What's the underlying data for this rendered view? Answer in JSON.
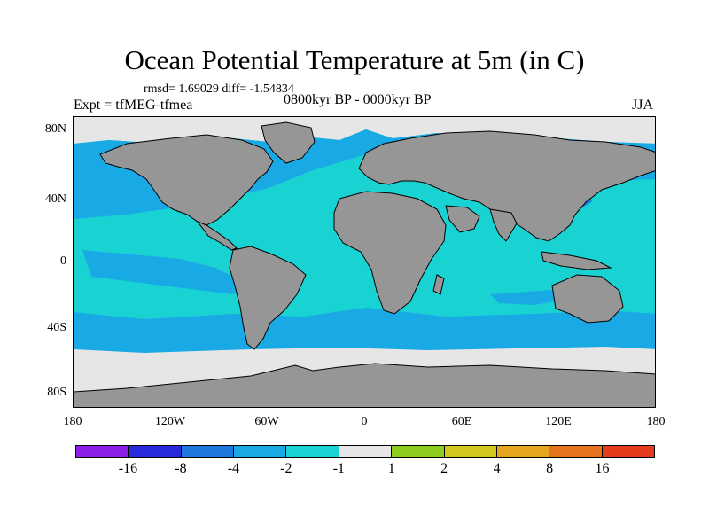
{
  "title": "Ocean Potential Temperature at 5m (in C)",
  "stats": "rmsd= 1.69029 diff= -1.54834",
  "experiment": "Expt = tfMEG-tfmea",
  "period": "0800kyr BP - 0000kyr BP",
  "season": "JJA",
  "y_axis_labels": [
    "80N",
    "40N",
    "0",
    "40S",
    "80S"
  ],
  "x_axis_labels": [
    "180",
    "120W",
    "60W",
    "0",
    "60E",
    "120E",
    "180"
  ],
  "colorbar": {
    "colors": [
      "#8c1ee6",
      "#2a2adc",
      "#1f78dc",
      "#19aae6",
      "#19d2d2",
      "#e6e6e6",
      "#8ccd1e",
      "#d2c81e",
      "#e6a51e",
      "#e6731e",
      "#e63c1e"
    ],
    "labels": [
      "-16",
      "-8",
      "-4",
      "-2",
      "-1",
      "1",
      "2",
      "4",
      "8",
      "16"
    ]
  },
  "map_colors": {
    "land": "#969696",
    "ocean_main": "#19d2d2",
    "ocean_cool": "#19aae6",
    "ocean_cold": "#1f78dc",
    "neutral": "#e6e6e6"
  }
}
